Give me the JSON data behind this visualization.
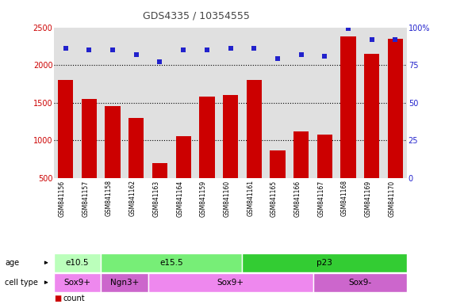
{
  "title": "GDS4335 / 10354555",
  "samples": [
    "GSM841156",
    "GSM841157",
    "GSM841158",
    "GSM841162",
    "GSM841163",
    "GSM841164",
    "GSM841159",
    "GSM841160",
    "GSM841161",
    "GSM841165",
    "GSM841166",
    "GSM841167",
    "GSM841168",
    "GSM841169",
    "GSM841170"
  ],
  "counts": [
    1800,
    1550,
    1450,
    1300,
    700,
    1050,
    1580,
    1600,
    1800,
    860,
    1120,
    1080,
    2380,
    2150,
    2350
  ],
  "percentile": [
    86,
    85,
    85,
    82,
    77,
    85,
    85,
    86,
    86,
    79,
    82,
    81,
    99,
    92,
    92
  ],
  "ylim_left": [
    500,
    2500
  ],
  "ylim_right": [
    0,
    100
  ],
  "yticks_left": [
    500,
    1000,
    1500,
    2000,
    2500
  ],
  "yticks_right": [
    0,
    25,
    50,
    75,
    100
  ],
  "bar_color": "#cc0000",
  "dot_color": "#2222cc",
  "age_groups": [
    {
      "label": "e10.5",
      "start": 0,
      "end": 2,
      "color": "#bbffbb"
    },
    {
      "label": "e15.5",
      "start": 2,
      "end": 8,
      "color": "#77ee77"
    },
    {
      "label": "p23",
      "start": 8,
      "end": 15,
      "color": "#33cc33"
    }
  ],
  "cell_groups": [
    {
      "label": "Sox9+",
      "start": 0,
      "end": 2,
      "color": "#ee88ee"
    },
    {
      "label": "Ngn3+",
      "start": 2,
      "end": 4,
      "color": "#cc66cc"
    },
    {
      "label": "Sox9+",
      "start": 4,
      "end": 11,
      "color": "#ee88ee"
    },
    {
      "label": "Sox9-",
      "start": 11,
      "end": 15,
      "color": "#cc66cc"
    }
  ],
  "plot_bg": "#e0e0e0",
  "fig_bg": "#ffffff",
  "title_color": "#444444",
  "left_tick_color": "#cc0000",
  "right_tick_color": "#2222cc"
}
